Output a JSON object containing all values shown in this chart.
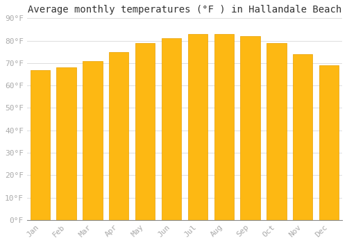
{
  "title": "Average monthly temperatures (°F ) in Hallandale Beach",
  "months": [
    "Jan",
    "Feb",
    "Mar",
    "Apr",
    "May",
    "Jun",
    "Jul",
    "Aug",
    "Sep",
    "Oct",
    "Nov",
    "Dec"
  ],
  "values": [
    67,
    68,
    71,
    75,
    79,
    81,
    83,
    83,
    82,
    79,
    74,
    69
  ],
  "bar_color": "#FDB813",
  "bar_edge_color": "#E8A000",
  "background_color": "#FFFFFF",
  "grid_color": "#DDDDDD",
  "ylim": [
    0,
    90
  ],
  "yticks": [
    0,
    10,
    20,
    30,
    40,
    50,
    60,
    70,
    80,
    90
  ],
  "title_fontsize": 10,
  "tick_fontsize": 8,
  "tick_label_color": "#AAAAAA",
  "bar_width": 0.75
}
